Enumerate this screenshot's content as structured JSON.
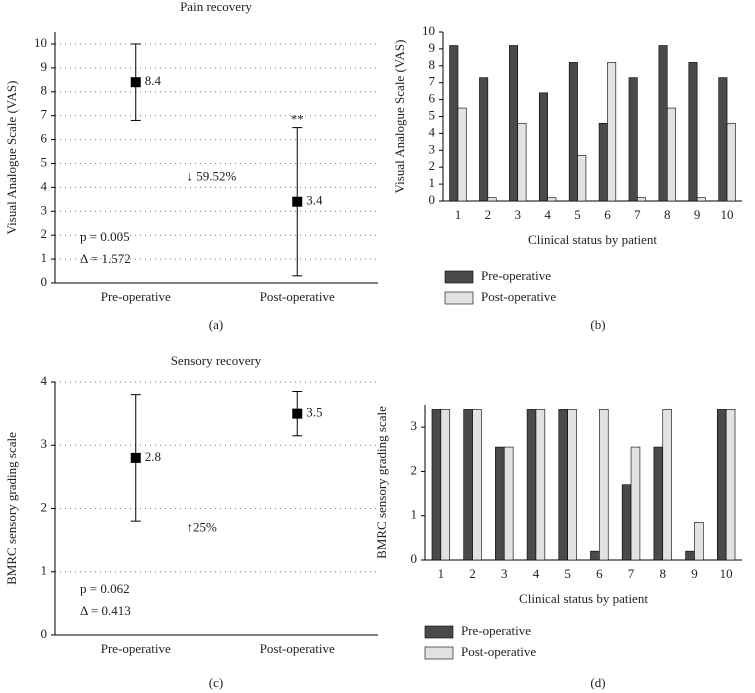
{
  "chart_data": [
    {
      "type": "errorbar",
      "title": "Pain recovery",
      "y_label": "Visual Analogue Scale (VAS)",
      "caption": "(a)",
      "categories": [
        "Pre-operative",
        "Post-operative"
      ],
      "values": [
        8.4,
        3.4
      ],
      "lower": [
        6.8,
        0.3
      ],
      "upper": [
        10,
        6.5
      ],
      "ylim": [
        0,
        10.5
      ],
      "yticks": [
        0,
        1,
        2,
        3,
        4,
        5,
        6,
        7,
        8,
        9,
        10
      ],
      "grid": true,
      "color": "#000000",
      "significance": "**",
      "change": "↓ 59.52%",
      "stats": [
        "p = 0.005",
        "Δ = 1.572"
      ]
    },
    {
      "type": "bar",
      "y_label": "Visual Analogue Scale (VAS)",
      "x_label": "Clinical status by patient",
      "caption": "(b)",
      "categories": [
        "1",
        "2",
        "3",
        "4",
        "5",
        "6",
        "7",
        "8",
        "9",
        "10"
      ],
      "series": [
        {
          "name": "Pre-operative",
          "color": "#4a4a4a",
          "values": [
            9.2,
            7.3,
            9.2,
            6.4,
            8.2,
            4.6,
            7.3,
            9.2,
            8.2,
            7.3
          ]
        },
        {
          "name": "Post-operative",
          "color": "#e2e2e2",
          "values": [
            5.5,
            0.2,
            4.6,
            0.2,
            2.7,
            8.2,
            0.2,
            5.5,
            0.2,
            4.6
          ]
        }
      ],
      "ylim": [
        0,
        10
      ],
      "yticks": [
        0,
        1,
        2,
        3,
        4,
        5,
        6,
        7,
        8,
        9,
        10
      ],
      "grid": false
    },
    {
      "type": "errorbar",
      "title": "Sensory recovery",
      "y_label": "BMRC sensory grading scale",
      "caption": "(c)",
      "categories": [
        "Pre-operative",
        "Post-operative"
      ],
      "values": [
        2.8,
        3.5
      ],
      "lower": [
        1.8,
        3.15
      ],
      "upper": [
        3.8,
        3.85
      ],
      "ylim": [
        0,
        4
      ],
      "yticks": [
        0,
        1,
        2,
        3,
        4
      ],
      "grid": true,
      "color": "#000000",
      "change": "↑25%",
      "stats": [
        "p = 0.062",
        "Δ = 0.413"
      ]
    },
    {
      "type": "bar",
      "y_label": "BMRC sensory grading scale",
      "x_label": "Clinical status by patient",
      "caption": "(d)",
      "categories": [
        "1",
        "2",
        "3",
        "4",
        "5",
        "6",
        "7",
        "8",
        "9",
        "10"
      ],
      "series": [
        {
          "name": "Pre-operative",
          "color": "#4a4a4a",
          "values": [
            3.4,
            3.4,
            2.55,
            3.4,
            3.4,
            0.2,
            1.7,
            2.55,
            0.2,
            3.4
          ]
        },
        {
          "name": "Post-operative",
          "color": "#e2e2e2",
          "values": [
            3.4,
            3.4,
            2.55,
            3.4,
            3.4,
            3.4,
            2.55,
            3.4,
            0.85,
            3.4
          ]
        }
      ],
      "ylim": [
        0,
        3.5
      ],
      "yticks": [
        0,
        1,
        2,
        3
      ],
      "grid": false
    }
  ]
}
